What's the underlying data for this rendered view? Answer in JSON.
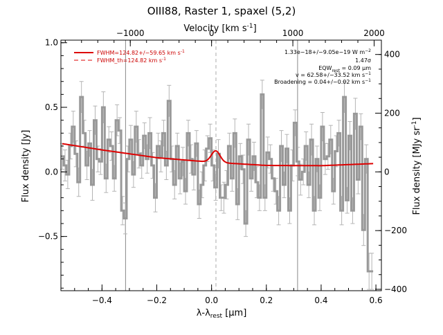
{
  "chart_data": {
    "type": "line",
    "title": "OIII88, Raster 1, spaxel (5,2)",
    "xlabel": "λ-λ",
    "xlabel_sub": "rest",
    "xlabel_unit": "[μm]",
    "ylabel": "Flux density [Jy]",
    "ylabel_right": "Flux density [MJy sr",
    "ylabel_right_sup": "-1",
    "ylabel_right_close": "]",
    "xlabel_top": "Velocity [km s",
    "xlabel_top_sup": "-1",
    "xlabel_top_close": "]",
    "xlim": [
      -0.55,
      0.62
    ],
    "ylim": [
      -0.92,
      1.02
    ],
    "xticks": [
      -0.4,
      -0.2,
      0.0,
      0.2,
      0.4,
      0.6
    ],
    "xtick_labels": [
      "−0.4",
      "−0.2",
      "0.0",
      "0.2",
      "0.4",
      "0.6"
    ],
    "yticks": [
      -0.5,
      0.0,
      0.5,
      1.0
    ],
    "ytick_labels": [
      "−0.5",
      "0.0",
      "0.5",
      "1.0"
    ],
    "top_ticks": [
      -1000,
      0,
      1000,
      2000
    ],
    "top_tick_labels": [
      "−1000",
      "0",
      "1000",
      "2000"
    ],
    "velocity_per_micron": 3370,
    "right_ticks": [
      -400,
      -200,
      0,
      200,
      400
    ],
    "right_tick_labels": [
      "−400",
      "−200",
      "0",
      "200",
      "400"
    ],
    "right_per_jy": 440,
    "vlines_solid": [
      -0.314,
      0.314
    ],
    "vline_dashed": 0.016,
    "legend": {
      "fit_label": "FWHM=124.82+/−59.65 km s",
      "fit_label_sup": "-1",
      "theory_label": "FWHM_th=124.82 km s",
      "theory_label_sup": "-1"
    },
    "annotations": {
      "line_flux": "1.33e−18+/−9.05e−19 W m",
      "line_flux_sup": "−2",
      "significance": "1.47σ",
      "eqw_prefix": "EQW",
      "eqw_sub": "rest",
      "eqw_value": "= 0.09 μm",
      "velocity": "v = 62.58+/−33.52 km s",
      "velocity_sup": "−1",
      "broadening": "Broadening = 0.04+/−0.02 km s",
      "broadening_sup": "−1"
    },
    "colors": {
      "data": "#999999",
      "errorbar": "#b4b4b4",
      "fit": "#dd0000",
      "refline": "#888888"
    },
    "series": [
      {
        "x": [
          -0.545,
          -0.535,
          -0.525,
          -0.515,
          -0.505,
          -0.495,
          -0.485,
          -0.475,
          -0.465,
          -0.455,
          -0.445,
          -0.435,
          -0.425,
          -0.415,
          -0.405,
          -0.395,
          -0.385,
          -0.375,
          -0.365,
          -0.355,
          -0.345,
          -0.335,
          -0.325,
          -0.315,
          -0.305,
          -0.295,
          -0.285,
          -0.275,
          -0.265,
          -0.255,
          -0.245,
          -0.235,
          -0.225,
          -0.215,
          -0.205,
          -0.195,
          -0.185,
          -0.175,
          -0.165,
          -0.155,
          -0.145,
          -0.135,
          -0.125,
          -0.115,
          -0.105,
          -0.095,
          -0.085,
          -0.075,
          -0.065,
          -0.055,
          -0.045,
          -0.035,
          -0.025,
          -0.015,
          -0.005,
          0.005,
          0.015,
          0.025,
          0.035,
          0.045,
          0.055,
          0.065,
          0.075,
          0.085,
          0.095,
          0.105,
          0.115,
          0.125,
          0.135,
          0.145,
          0.155,
          0.165,
          0.175,
          0.185,
          0.195,
          0.205,
          0.215,
          0.225,
          0.235,
          0.245,
          0.255,
          0.265,
          0.275,
          0.285,
          0.295,
          0.305,
          0.315,
          0.325,
          0.335,
          0.345,
          0.355,
          0.365,
          0.375,
          0.385,
          0.395,
          0.405,
          0.415,
          0.425,
          0.435,
          0.445,
          0.455,
          0.465,
          0.475,
          0.485,
          0.495,
          0.505,
          0.515,
          0.525,
          0.535,
          0.545,
          0.555,
          0.565,
          0.575,
          0.585
        ],
        "y": [
          0.12,
          0.05,
          -0.02,
          0.2,
          0.35,
          0.14,
          -0.08,
          0.58,
          0.3,
          0.05,
          0.22,
          -0.1,
          0.4,
          0.1,
          0.08,
          0.5,
          -0.05,
          0.25,
          0.2,
          -0.05,
          0.4,
          0.32,
          -0.3,
          -0.36,
          0.1,
          0.25,
          -0.02,
          0.35,
          0.14,
          0.05,
          0.28,
          0.1,
          0.3,
          0.05,
          -0.2,
          0.2,
          0.12,
          0.3,
          0.05,
          0.55,
          0.1,
          -0.1,
          0.2,
          -0.05,
          0.08,
          -0.15,
          0.3,
          0.1,
          -0.02,
          0.22,
          -0.25,
          -0.1,
          0.05,
          0.18,
          0.26,
          0.05,
          -0.12,
          0.14,
          -0.2,
          -0.2,
          -0.1,
          0.2,
          -0.05,
          0.3,
          -0.25,
          0.12,
          0.02,
          -0.4,
          0.25,
          -0.05,
          0.12,
          -0.08,
          -0.2,
          0.6,
          -0.2,
          0.15,
          0.1,
          -0.05,
          -0.15,
          -0.3,
          0.2,
          -0.1,
          0.18,
          -0.3,
          0.05,
          0.38,
          0.08,
          -0.06,
          0.0,
          0.2,
          -0.1,
          0.25,
          -0.3,
          0.1,
          -0.2,
          0.35,
          0.1,
          0.12,
          0.25,
          -0.15,
          0.16,
          0.3,
          -0.3,
          0.58,
          -0.22,
          0.28,
          -0.3,
          0.45,
          -0.06,
          0.35,
          -0.45,
          0.1,
          -0.77,
          -0.77
        ],
        "err": [
          0.1,
          0.12,
          0.11,
          0.1,
          0.12,
          0.1,
          0.11,
          0.12,
          0.1,
          0.11,
          0.1,
          0.12,
          0.11,
          0.1,
          0.1,
          0.12,
          0.11,
          0.1,
          0.11,
          0.1,
          0.12,
          0.1,
          0.11,
          0.12,
          0.1,
          0.11,
          0.1,
          0.12,
          0.11,
          0.1,
          0.1,
          0.11,
          0.12,
          0.1,
          0.11,
          0.1,
          0.12,
          0.1,
          0.11,
          0.12,
          0.1,
          0.11,
          0.1,
          0.12,
          0.11,
          0.1,
          0.1,
          0.11,
          0.12,
          0.1,
          0.11,
          0.1,
          0.12,
          0.1,
          0.11,
          0.12,
          0.1,
          0.11,
          0.1,
          0.12,
          0.11,
          0.1,
          0.1,
          0.11,
          0.12,
          0.1,
          0.11,
          0.1,
          0.12,
          0.1,
          0.11,
          0.12,
          0.1,
          0.11,
          0.1,
          0.12,
          0.11,
          0.1,
          0.1,
          0.11,
          0.12,
          0.1,
          0.11,
          0.1,
          0.12,
          0.1,
          0.11,
          0.12,
          0.1,
          0.11,
          0.1,
          0.12,
          0.11,
          0.1,
          0.1,
          0.11,
          0.12,
          0.1,
          0.11,
          0.1,
          0.12,
          0.1,
          0.11,
          0.12,
          0.1,
          0.11,
          0.1,
          0.12,
          0.11,
          0.1,
          0.12,
          0.11,
          0.14,
          0.14
        ]
      }
    ],
    "fit_model": {
      "baseline_x": [
        -0.55,
        -0.4,
        -0.2,
        0.0,
        0.2,
        0.4,
        0.6
      ],
      "baseline_y": [
        0.22,
        0.17,
        0.11,
        0.075,
        0.05,
        0.048,
        0.065
      ],
      "gaussian_center": 0.015,
      "gaussian_amplitude": 0.09,
      "gaussian_sigma": 0.016
    }
  }
}
